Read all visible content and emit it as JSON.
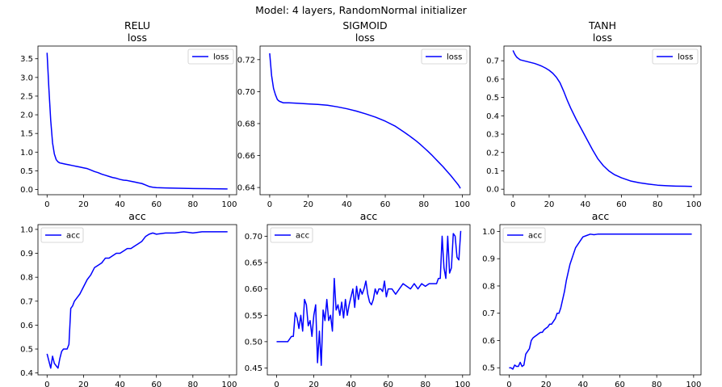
{
  "figure": {
    "suptitle": "Model: 4 layers, RandomNormal initializer"
  },
  "colors": {
    "line": "#0000ff"
  },
  "chart_data": [
    {
      "id": "relu-loss",
      "type": "line",
      "title": [
        "RELU",
        "loss"
      ],
      "legend": {
        "label": "loss",
        "placement": "top-right"
      },
      "xlim": [
        -5,
        104
      ],
      "ylim": [
        -0.14,
        3.84
      ],
      "xticks": [
        0,
        20,
        40,
        60,
        80,
        100
      ],
      "yticks": [
        0.0,
        0.5,
        1.0,
        1.5,
        2.0,
        2.5,
        3.0,
        3.5
      ],
      "ytick_labels": [
        "0.0",
        "0.5",
        "1.0",
        "1.5",
        "2.0",
        "2.5",
        "3.0",
        "3.5"
      ],
      "series": [
        {
          "x": [
            0,
            1,
            2,
            3,
            4,
            5,
            6,
            7,
            8,
            10,
            12,
            14,
            16,
            18,
            20,
            22,
            24,
            26,
            28,
            30,
            32,
            34,
            36,
            38,
            40,
            42,
            44,
            46,
            48,
            50,
            52,
            54,
            56,
            58,
            60,
            65,
            70,
            75,
            80,
            85,
            90,
            95,
            99
          ],
          "y": [
            3.66,
            2.7,
            1.85,
            1.25,
            0.95,
            0.8,
            0.74,
            0.71,
            0.7,
            0.68,
            0.66,
            0.64,
            0.62,
            0.6,
            0.58,
            0.56,
            0.52,
            0.48,
            0.45,
            0.41,
            0.38,
            0.35,
            0.32,
            0.3,
            0.27,
            0.25,
            0.24,
            0.22,
            0.2,
            0.18,
            0.16,
            0.12,
            0.08,
            0.06,
            0.05,
            0.04,
            0.035,
            0.03,
            0.025,
            0.022,
            0.02,
            0.018,
            0.015
          ]
        }
      ]
    },
    {
      "id": "sigmoid-loss",
      "type": "line",
      "title": [
        "SIGMOID",
        "loss"
      ],
      "legend": {
        "label": "loss",
        "placement": "top-right"
      },
      "xlim": [
        -5,
        104
      ],
      "ylim": [
        0.6355,
        0.7285
      ],
      "xticks": [
        0,
        20,
        40,
        60,
        80,
        100
      ],
      "yticks": [
        0.64,
        0.66,
        0.68,
        0.7,
        0.72
      ],
      "ytick_labels": [
        "0.64",
        "0.66",
        "0.68",
        "0.70",
        "0.72"
      ],
      "series": [
        {
          "x": [
            0,
            1,
            2,
            3,
            4,
            5,
            6,
            7,
            8,
            10,
            15,
            20,
            25,
            30,
            35,
            40,
            45,
            50,
            55,
            60,
            65,
            70,
            72,
            74,
            76,
            78,
            80,
            82,
            84,
            86,
            88,
            90,
            92,
            94,
            96,
            98,
            99
          ],
          "y": [
            0.724,
            0.71,
            0.702,
            0.698,
            0.695,
            0.694,
            0.6935,
            0.693,
            0.693,
            0.693,
            0.6927,
            0.6923,
            0.692,
            0.6915,
            0.6905,
            0.6893,
            0.6878,
            0.686,
            0.684,
            0.6815,
            0.6785,
            0.6745,
            0.6728,
            0.671,
            0.6692,
            0.6672,
            0.665,
            0.6628,
            0.6605,
            0.658,
            0.6555,
            0.653,
            0.6502,
            0.6475,
            0.6445,
            0.6415,
            0.6395
          ]
        }
      ]
    },
    {
      "id": "tanh-loss",
      "type": "line",
      "title": [
        "TANH",
        "loss"
      ],
      "legend": {
        "label": "loss",
        "placement": "top-right"
      },
      "xlim": [
        -5,
        104
      ],
      "ylim": [
        -0.03,
        0.78
      ],
      "xticks": [
        0,
        20,
        40,
        60,
        80,
        100
      ],
      "yticks": [
        0.0,
        0.1,
        0.2,
        0.3,
        0.4,
        0.5,
        0.6,
        0.7
      ],
      "ytick_labels": [
        "0.0",
        "0.1",
        "0.2",
        "0.3",
        "0.4",
        "0.5",
        "0.6",
        "0.7"
      ],
      "series": [
        {
          "x": [
            0,
            1,
            2,
            3,
            4,
            6,
            8,
            10,
            12,
            14,
            16,
            18,
            20,
            22,
            24,
            26,
            28,
            30,
            32,
            35,
            38,
            41,
            44,
            47,
            50,
            53,
            56,
            60,
            65,
            70,
            75,
            80,
            85,
            90,
            95,
            99
          ],
          "y": [
            0.756,
            0.735,
            0.72,
            0.712,
            0.705,
            0.7,
            0.695,
            0.69,
            0.685,
            0.678,
            0.67,
            0.66,
            0.648,
            0.632,
            0.61,
            0.58,
            0.535,
            0.485,
            0.44,
            0.38,
            0.325,
            0.27,
            0.215,
            0.165,
            0.128,
            0.1,
            0.08,
            0.062,
            0.045,
            0.035,
            0.028,
            0.022,
            0.019,
            0.017,
            0.016,
            0.015
          ]
        }
      ]
    },
    {
      "id": "relu-acc",
      "type": "line",
      "title": [
        "acc"
      ],
      "legend": {
        "label": "acc",
        "placement": "top-left"
      },
      "xlim": [
        -5,
        104
      ],
      "ylim": [
        0.392,
        1.02
      ],
      "xticks": [
        0,
        20,
        40,
        60,
        80,
        100
      ],
      "yticks": [
        0.4,
        0.5,
        0.6,
        0.7,
        0.8,
        0.9,
        1.0
      ],
      "ytick_labels": [
        "0.4",
        "0.5",
        "0.6",
        "0.7",
        "0.8",
        "0.9",
        "1.0"
      ],
      "series": [
        {
          "x": [
            0,
            1,
            2,
            3,
            4,
            5,
            6,
            7,
            8,
            9,
            10,
            11,
            12,
            13,
            14,
            15,
            16,
            18,
            20,
            22,
            24,
            26,
            28,
            30,
            32,
            34,
            36,
            38,
            40,
            42,
            44,
            46,
            48,
            50,
            52,
            54,
            56,
            58,
            60,
            65,
            70,
            75,
            80,
            85,
            90,
            95,
            99
          ],
          "y": [
            0.48,
            0.45,
            0.42,
            0.47,
            0.44,
            0.43,
            0.42,
            0.46,
            0.49,
            0.5,
            0.5,
            0.5,
            0.52,
            0.67,
            0.68,
            0.7,
            0.71,
            0.73,
            0.76,
            0.79,
            0.81,
            0.84,
            0.85,
            0.86,
            0.88,
            0.88,
            0.89,
            0.9,
            0.9,
            0.91,
            0.92,
            0.92,
            0.93,
            0.94,
            0.95,
            0.97,
            0.98,
            0.985,
            0.98,
            0.985,
            0.985,
            0.99,
            0.985,
            0.99,
            0.99,
            0.99,
            0.99
          ]
        }
      ]
    },
    {
      "id": "sigmoid-acc",
      "type": "line",
      "title": [
        "acc"
      ],
      "legend": {
        "label": "acc",
        "placement": "top-left"
      },
      "xlim": [
        -5,
        104
      ],
      "ylim": [
        0.437,
        0.722
      ],
      "xticks": [
        0,
        20,
        40,
        60,
        80,
        100
      ],
      "yticks": [
        0.45,
        0.5,
        0.55,
        0.6,
        0.65,
        0.7
      ],
      "ytick_labels": [
        "0.45",
        "0.50",
        "0.55",
        "0.60",
        "0.65",
        "0.70"
      ],
      "series": [
        {
          "x": [
            0,
            2,
            4,
            6,
            8,
            9,
            10,
            11,
            12,
            13,
            14,
            15,
            16,
            17,
            18,
            19,
            20,
            21,
            22,
            23,
            24,
            25,
            26,
            27,
            28,
            29,
            30,
            31,
            32,
            33,
            34,
            35,
            36,
            37,
            38,
            39,
            40,
            41,
            42,
            43,
            44,
            45,
            46,
            47,
            48,
            49,
            50,
            51,
            52,
            53,
            54,
            55,
            56,
            57,
            58,
            59,
            60,
            62,
            64,
            66,
            68,
            70,
            72,
            74,
            76,
            78,
            80,
            82,
            84,
            86,
            87,
            88,
            89,
            90,
            91,
            92,
            93,
            94,
            95,
            96,
            97,
            98,
            99
          ],
          "y": [
            0.5,
            0.5,
            0.5,
            0.5,
            0.51,
            0.51,
            0.555,
            0.545,
            0.525,
            0.55,
            0.52,
            0.58,
            0.57,
            0.53,
            0.54,
            0.51,
            0.55,
            0.57,
            0.46,
            0.52,
            0.455,
            0.56,
            0.54,
            0.58,
            0.54,
            0.55,
            0.52,
            0.62,
            0.56,
            0.57,
            0.55,
            0.575,
            0.545,
            0.58,
            0.55,
            0.57,
            0.585,
            0.6,
            0.565,
            0.605,
            0.58,
            0.6,
            0.59,
            0.6,
            0.615,
            0.59,
            0.575,
            0.57,
            0.58,
            0.6,
            0.59,
            0.6,
            0.6,
            0.595,
            0.615,
            0.585,
            0.6,
            0.6,
            0.59,
            0.6,
            0.61,
            0.605,
            0.6,
            0.61,
            0.6,
            0.61,
            0.605,
            0.61,
            0.61,
            0.61,
            0.62,
            0.62,
            0.7,
            0.64,
            0.62,
            0.7,
            0.63,
            0.64,
            0.705,
            0.7,
            0.66,
            0.655,
            0.71
          ]
        }
      ]
    },
    {
      "id": "tanh-acc",
      "type": "line",
      "title": [
        "acc"
      ],
      "legend": {
        "label": "acc",
        "placement": "top-left"
      },
      "xlim": [
        -5,
        104
      ],
      "ylim": [
        0.474,
        1.025
      ],
      "xticks": [
        0,
        20,
        40,
        60,
        80,
        100
      ],
      "yticks": [
        0.5,
        0.6,
        0.7,
        0.8,
        0.9,
        1.0
      ],
      "ytick_labels": [
        "0.5",
        "0.6",
        "0.7",
        "0.8",
        "0.9",
        "1.0"
      ],
      "series": [
        {
          "x": [
            0,
            1,
            2,
            3,
            4,
            5,
            6,
            7,
            8,
            9,
            10,
            11,
            12,
            13,
            14,
            15,
            16,
            17,
            18,
            19,
            20,
            21,
            22,
            23,
            24,
            25,
            26,
            27,
            28,
            29,
            30,
            31,
            32,
            33,
            34,
            35,
            36,
            37,
            38,
            39,
            40,
            42,
            44,
            46,
            48,
            50,
            55,
            60,
            65,
            70,
            75,
            80,
            85,
            90,
            95,
            99
          ],
          "y": [
            0.5,
            0.5,
            0.495,
            0.51,
            0.505,
            0.505,
            0.52,
            0.505,
            0.51,
            0.55,
            0.56,
            0.57,
            0.6,
            0.61,
            0.615,
            0.62,
            0.625,
            0.63,
            0.63,
            0.64,
            0.645,
            0.65,
            0.66,
            0.66,
            0.67,
            0.68,
            0.7,
            0.7,
            0.72,
            0.75,
            0.78,
            0.82,
            0.85,
            0.88,
            0.9,
            0.92,
            0.94,
            0.95,
            0.96,
            0.97,
            0.98,
            0.985,
            0.99,
            0.988,
            0.99,
            0.99,
            0.99,
            0.99,
            0.99,
            0.99,
            0.99,
            0.99,
            0.99,
            0.99,
            0.99,
            0.99
          ]
        }
      ]
    }
  ]
}
